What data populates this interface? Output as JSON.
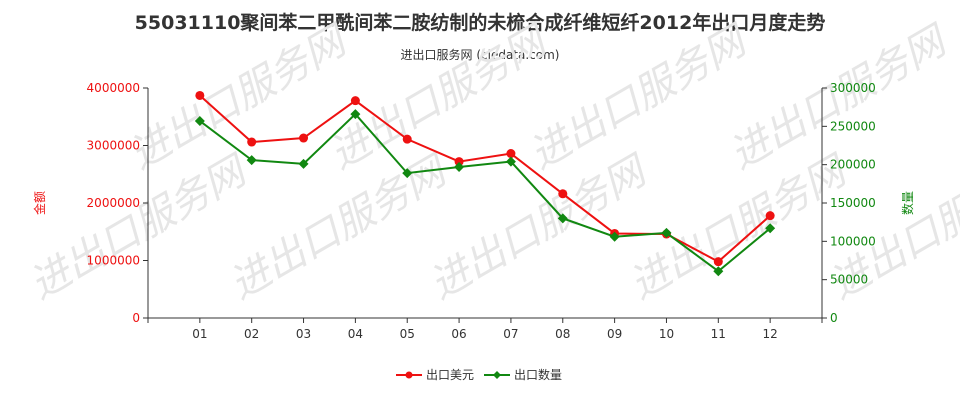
{
  "header": {
    "title": "55031110聚间苯二甲酰间苯二胺纺制的未梳合成纤维短纤2012年出口月度走势",
    "subtitle": "进出口服务网 (ciedata.com)"
  },
  "watermark": "进出口服务网",
  "chart_data": {
    "type": "line",
    "categories": [
      "01",
      "02",
      "03",
      "04",
      "05",
      "06",
      "07",
      "08",
      "09",
      "10",
      "11",
      "12"
    ],
    "series": [
      {
        "name": "出口美元",
        "axis": "left",
        "color": "#ee1111",
        "values": [
          3870000,
          3060000,
          3130000,
          3780000,
          3110000,
          2720000,
          2860000,
          2160000,
          1470000,
          1460000,
          980000,
          1780000
        ]
      },
      {
        "name": "出口数量",
        "axis": "right",
        "color": "#118811",
        "values": [
          257000,
          206000,
          201000,
          266000,
          189000,
          197000,
          204000,
          130000,
          106000,
          111000,
          61000,
          117000
        ]
      }
    ],
    "y_left": {
      "label": "金额",
      "min": 0,
      "max": 4000000,
      "ticks": [
        "0",
        "1000000",
        "2000000",
        "3000000",
        "4000000"
      ],
      "color": "#ee1111"
    },
    "y_right": {
      "label": "数量",
      "min": 0,
      "max": 300000,
      "ticks": [
        "0",
        "50000",
        "100000",
        "150000",
        "200000",
        "250000",
        "300000"
      ],
      "color": "#118811"
    },
    "legend_position": "bottom-center",
    "grid": false
  }
}
